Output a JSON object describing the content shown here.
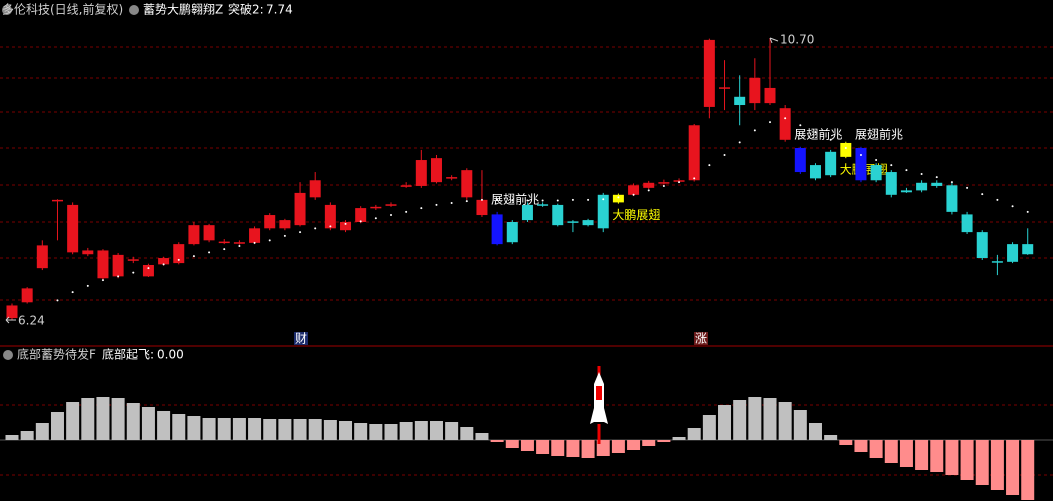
{
  "header": {
    "stock": "多伦科技(日线,前复权)",
    "indicator": "蓄势大鹏翱翔Z",
    "output_name": "突破2:",
    "output_value": 7.74
  },
  "sub_header": {
    "indicator": "底部蓄势待发F",
    "output_name": "底部起飞:",
    "output_value": {
      "value": 0,
      "label": "0.00"
    }
  },
  "event_labels": [
    "财",
    "涨"
  ],
  "chart_data": [
    {
      "type": "candlestick",
      "open": [
        6.27,
        6.52,
        7.06,
        8.14,
        7.31,
        7.28,
        6.9,
        6.93,
        7.19,
        6.93,
        7.12,
        7.14,
        7.44,
        7.5,
        7.47,
        7.46,
        7.46,
        7.69,
        7.69,
        7.74,
        8.18,
        7.69,
        7.66,
        7.79,
        8.01,
        8.06,
        8.36,
        8.36,
        8.42,
        8.48,
        8.18,
        7.9,
        7.91,
        7.79,
        8.06,
        8.07,
        8.06,
        7.8,
        7.82,
        8.22,
        8.1,
        8.22,
        8.33,
        8.4,
        8.43,
        8.45,
        9.61,
        9.91,
        9.77,
        9.67,
        9.67,
        9.09,
        8.96,
        8.69,
        8.9,
        8.82,
        8.96,
        8.69,
        8.58,
        8.29,
        8.41,
        8.41,
        8.37,
        7.91,
        7.63,
        7.17,
        7.44,
        7.44
      ],
      "high": [
        6.5,
        6.76,
        7.5,
        8.15,
        8.1,
        7.38,
        7.36,
        7.3,
        7.24,
        7.13,
        7.24,
        7.47,
        7.79,
        7.76,
        7.52,
        7.5,
        7.72,
        7.93,
        7.84,
        8.42,
        8.58,
        8.1,
        7.82,
        8.04,
        8.06,
        8.1,
        8.42,
        8.93,
        8.85,
        8.53,
        8.64,
        8.61,
        7.95,
        7.82,
        8.1,
        8.1,
        8.08,
        7.82,
        7.84,
        8.25,
        8.24,
        8.4,
        8.44,
        8.46,
        8.48,
        9.34,
        10.69,
        10.35,
        10.11,
        10.38,
        10.7,
        9.64,
        8.98,
        8.72,
        8.93,
        9.06,
        8.98,
        8.72,
        8.61,
        8.33,
        8.45,
        8.45,
        8.41,
        7.95,
        7.66,
        7.27,
        7.47,
        7.69
      ],
      "low": [
        6.24,
        6.5,
        7.03,
        7.5,
        7.28,
        7.25,
        6.88,
        6.9,
        7.14,
        6.92,
        7.1,
        7.12,
        7.42,
        7.47,
        7.44,
        7.43,
        7.44,
        7.66,
        7.66,
        7.72,
        8.14,
        7.66,
        7.63,
        7.77,
        7.98,
        8.03,
        8.33,
        8.33,
        8.4,
        8.45,
        8.14,
        7.87,
        7.42,
        7.44,
        7.79,
        8.03,
        7.72,
        7.63,
        7.72,
        7.63,
        8.08,
        8.2,
        8.31,
        8.38,
        8.41,
        8.43,
        9.43,
        9.56,
        9.32,
        9.56,
        9.64,
        9.06,
        8.55,
        8.45,
        8.5,
        8.8,
        8.42,
        8.42,
        8.18,
        8.25,
        8.26,
        8.33,
        7.91,
        7.6,
        7.19,
        6.95,
        7.14,
        7.27
      ],
      "close": [
        6.47,
        6.74,
        7.42,
        8.13,
        8.06,
        7.34,
        7.34,
        7.27,
        7.2,
        7.11,
        7.22,
        7.44,
        7.74,
        7.74,
        7.48,
        7.47,
        7.69,
        7.9,
        7.82,
        8.25,
        8.45,
        8.06,
        7.79,
        8.01,
        8.03,
        8.07,
        8.37,
        8.77,
        8.8,
        8.5,
        8.61,
        8.14,
        7.44,
        7.47,
        7.82,
        8.06,
        7.74,
        7.79,
        7.74,
        7.69,
        8.22,
        8.37,
        8.41,
        8.42,
        8.45,
        9.32,
        10.67,
        9.92,
        9.64,
        10.07,
        9.91,
        9.59,
        8.58,
        8.48,
        8.53,
        9.04,
        8.45,
        8.45,
        8.22,
        8.26,
        8.29,
        8.36,
        7.95,
        7.63,
        7.22,
        7.16,
        7.16,
        7.28
      ],
      "colors": [
        "#e8141e",
        "#e8141e",
        "#e8141e",
        "#e8141e",
        "#e8141e",
        "#e8141e",
        "#e8141e",
        "#e8141e",
        "#e8141e",
        "#e8141e",
        "#e8141e",
        "#e8141e",
        "#e8141e",
        "#e8141e",
        "#e8141e",
        "#e8141e",
        "#e8141e",
        "#e8141e",
        "#e8141e",
        "#e8141e",
        "#e8141e",
        "#e8141e",
        "#e8141e",
        "#e8141e",
        "#e8141e",
        "#e8141e",
        "#e8141e",
        "#e8141e",
        "#e8141e",
        "#e8141e",
        "#e8141e",
        "#e8141e",
        "#1414ff",
        "#2ad2d2",
        "#2ad2d2",
        "#2ad2d2",
        "#2ad2d2",
        "#2ad2d2",
        "#2ad2d2",
        "#2ad2d2",
        "#ffff00",
        "#e8141e",
        "#e8141e",
        "#e8141e",
        "#e8141e",
        "#e8141e",
        "#e8141e",
        "#e8141e",
        "#2ad2d2",
        "#e8141e",
        "#e8141e",
        "#e8141e",
        "#1414ff",
        "#2ad2d2",
        "#2ad2d2",
        "#ffff00",
        "#1414ff",
        "#2ad2d2",
        "#2ad2d2",
        "#2ad2d2",
        "#2ad2d2",
        "#2ad2d2",
        "#2ad2d2",
        "#2ad2d2",
        "#2ad2d2",
        "#2ad2d2",
        "#2ad2d2",
        "#2ad2d2"
      ],
      "dots": [
        null,
        null,
        null,
        6.55,
        6.68,
        6.78,
        6.87,
        6.93,
        6.99,
        7.06,
        7.12,
        7.19,
        7.25,
        7.31,
        7.36,
        7.41,
        7.46,
        7.5,
        7.57,
        7.63,
        7.69,
        7.72,
        7.76,
        7.8,
        7.85,
        7.9,
        7.95,
        8.01,
        8.06,
        8.09,
        8.12,
        8.14,
        8.14,
        8.13,
        8.13,
        8.13,
        8.13,
        8.14,
        8.14,
        8.15,
        8.18,
        8.22,
        8.29,
        8.36,
        8.42,
        8.48,
        8.69,
        8.85,
        9.05,
        9.24,
        9.37,
        9.43,
        9.32,
        9.21,
        9.09,
        8.96,
        8.85,
        8.77,
        8.69,
        8.61,
        8.55,
        8.5,
        8.42,
        8.33,
        8.23,
        8.14,
        8.04,
        7.95
      ],
      "dot_color": "#ffffff",
      "signal_labels": [
        null,
        null,
        null,
        null,
        null,
        null,
        null,
        null,
        null,
        null,
        null,
        null,
        null,
        null,
        null,
        null,
        null,
        null,
        null,
        null,
        null,
        null,
        null,
        null,
        null,
        null,
        null,
        null,
        null,
        null,
        null,
        null,
        "展翅前兆",
        null,
        null,
        null,
        null,
        null,
        null,
        null,
        "大鹏展翅",
        null,
        null,
        null,
        null,
        null,
        null,
        null,
        null,
        null,
        null,
        null,
        "展翅前兆",
        null,
        null,
        "大鹏展翅",
        "展翅前兆",
        null,
        null,
        null,
        null,
        null,
        null,
        null,
        null,
        null,
        null,
        null
      ],
      "signal_colors": [
        null,
        null,
        null,
        null,
        null,
        null,
        null,
        null,
        null,
        null,
        null,
        null,
        null,
        null,
        null,
        null,
        null,
        null,
        null,
        null,
        null,
        null,
        null,
        null,
        null,
        null,
        null,
        null,
        null,
        null,
        null,
        null,
        "#ffffff",
        null,
        null,
        null,
        null,
        null,
        null,
        null,
        "#ffff00",
        null,
        null,
        null,
        null,
        null,
        null,
        null,
        null,
        null,
        null,
        null,
        "#ffffff",
        null,
        null,
        "#ffff00",
        "#ffffff",
        null,
        null,
        null,
        null,
        null,
        null,
        null,
        null,
        null,
        null,
        null
      ],
      "max_label": "10.70",
      "min_label": "6.24"
    },
    {
      "type": "histogram_bar",
      "values": [
        5,
        9,
        17,
        28,
        38,
        42,
        43,
        42,
        37,
        33,
        29,
        26,
        24,
        22,
        22,
        22,
        22,
        21,
        21,
        21,
        21,
        20,
        19,
        17,
        16,
        16,
        18,
        19,
        19,
        18,
        13,
        7,
        -2,
        -8,
        -11,
        -14,
        -16,
        -17,
        -18,
        -16,
        -13,
        -10,
        -6,
        -2,
        3,
        12,
        25,
        35,
        40,
        43,
        42,
        38,
        30,
        17,
        5,
        -5,
        -12,
        -18,
        -23,
        -27,
        -30,
        -32,
        -35,
        -40,
        -45,
        -50,
        -55,
        -60
      ],
      "positive_color": "#c0c0c0",
      "negative_color": "#ff8c8c"
    }
  ]
}
